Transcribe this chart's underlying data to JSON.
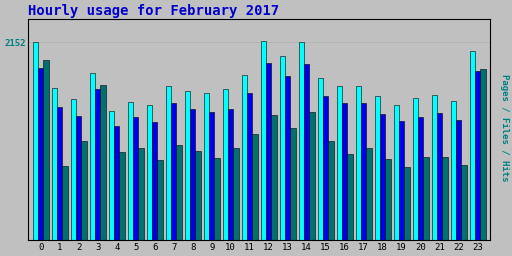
{
  "title": "Hourly usage for February 2017",
  "title_color": "#0000cc",
  "title_fontsize": 10,
  "hours": [
    0,
    1,
    2,
    3,
    4,
    5,
    6,
    7,
    8,
    9,
    10,
    11,
    12,
    13,
    14,
    15,
    16,
    17,
    18,
    19,
    20,
    21,
    22,
    23
  ],
  "hits": [
    2152,
    1650,
    1530,
    1820,
    1400,
    1500,
    1470,
    1680,
    1620,
    1600,
    1640,
    1800,
    2160,
    2000,
    2155,
    1760,
    1680,
    1680,
    1570,
    1470,
    1540,
    1580,
    1510,
    2060
  ],
  "files": [
    1870,
    1450,
    1350,
    1640,
    1240,
    1340,
    1280,
    1490,
    1430,
    1390,
    1420,
    1600,
    1920,
    1780,
    1910,
    1570,
    1490,
    1490,
    1370,
    1290,
    1340,
    1380,
    1310,
    1840
  ],
  "pages": [
    1960,
    800,
    1080,
    1690,
    960,
    1000,
    870,
    1030,
    970,
    890,
    1000,
    1150,
    1360,
    1220,
    1390,
    1080,
    940,
    1000,
    880,
    790,
    900,
    900,
    820,
    1860
  ],
  "hits_color": "#00ffff",
  "files_color": "#0000ee",
  "pages_color": "#007070",
  "bar_width": 0.28,
  "ylabel": "Pages / Files / Hits",
  "ylabel_color": "#008080",
  "background_color": "#c0c0c0",
  "plot_bg_color": "#c0c0c0",
  "ylim_max": 2400,
  "ytick_value": 2152,
  "ytick_label": "2152",
  "ytick_color": "#008080",
  "grid_color": "#b0b0b0",
  "border_color": "#000000"
}
